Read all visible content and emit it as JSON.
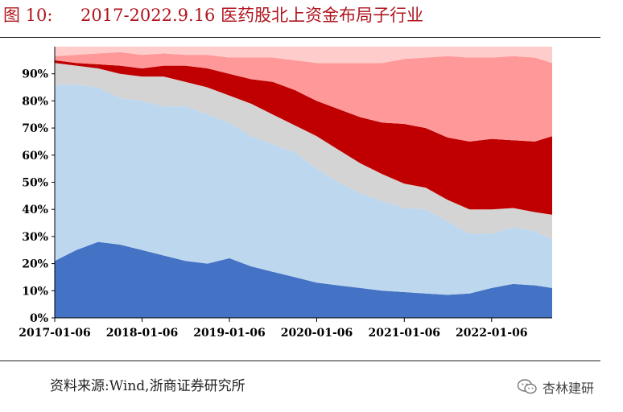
{
  "figure": {
    "number": "图 10:",
    "title": "2017-2022.9.16 医药股北上资金布局子行业"
  },
  "source_note": "资料来源:Wind,浙商证券研究所",
  "watermark": "杏林建研",
  "colors": {
    "title": "#b0151e",
    "series": [
      "#4472c4",
      "#bdd7ee",
      "#d4d4d4",
      "#c00000",
      "#ff9999",
      "#ffcccc"
    ]
  },
  "chart_data": {
    "type": "area",
    "stacked": true,
    "title": "",
    "xlabel": "",
    "ylabel": "",
    "ylim": [
      0,
      100
    ],
    "y_ticks": [
      "0%",
      "10%",
      "20%",
      "30%",
      "40%",
      "50%",
      "60%",
      "70%",
      "80%",
      "90%"
    ],
    "x_ticks": [
      "2017-01-06",
      "2018-01-06",
      "2019-01-06",
      "2020-01-06",
      "2021-01-06",
      "2022-01-06"
    ],
    "grid": false,
    "legend": "none",
    "x": [
      "2017-01-06",
      "2017-04-06",
      "2017-07-06",
      "2017-10-06",
      "2018-01-06",
      "2018-04-06",
      "2018-07-06",
      "2018-10-06",
      "2019-01-06",
      "2019-04-06",
      "2019-07-06",
      "2019-10-06",
      "2020-01-06",
      "2020-04-06",
      "2020-07-06",
      "2020-10-06",
      "2021-01-06",
      "2021-04-06",
      "2021-07-06",
      "2021-10-06",
      "2022-01-06",
      "2022-04-06",
      "2022-07-06",
      "2022-09-16"
    ],
    "series": [
      {
        "values": [
          21,
          25,
          28,
          27,
          25,
          23,
          21,
          20,
          22,
          19,
          17,
          15,
          13,
          12,
          11,
          10,
          9.5,
          9,
          8.5,
          9,
          11,
          12.5,
          12,
          11
        ]
      },
      {
        "values": [
          65,
          61,
          57,
          54,
          55,
          55,
          57,
          55,
          50,
          48,
          47,
          46,
          42,
          38,
          35,
          33,
          31,
          31,
          27,
          22,
          20,
          21,
          20,
          18
        ]
      },
      {
        "values": [
          8,
          7,
          7,
          9,
          9,
          11,
          9,
          10,
          10,
          12,
          11,
          10,
          12,
          12,
          11,
          10,
          9,
          8,
          8,
          9,
          9,
          7,
          7,
          9
        ]
      },
      {
        "values": [
          1,
          1,
          1.5,
          3,
          3,
          4,
          6,
          7,
          8,
          9,
          12,
          13,
          13,
          15,
          17,
          19,
          22,
          22,
          23,
          25,
          26,
          25,
          26,
          29
        ]
      },
      {
        "values": [
          1.5,
          3,
          4,
          5,
          5,
          4.5,
          4,
          5,
          6,
          8,
          9,
          11,
          14,
          17,
          20,
          22,
          24,
          26,
          30,
          31,
          30,
          31,
          31,
          27
        ]
      },
      {
        "values": [
          3.5,
          3,
          2.5,
          2,
          3,
          2.5,
          3,
          3,
          4,
          4,
          4,
          5,
          6,
          6,
          6,
          6,
          4.5,
          4,
          3.5,
          4,
          4,
          3.5,
          4,
          6
        ]
      }
    ]
  }
}
